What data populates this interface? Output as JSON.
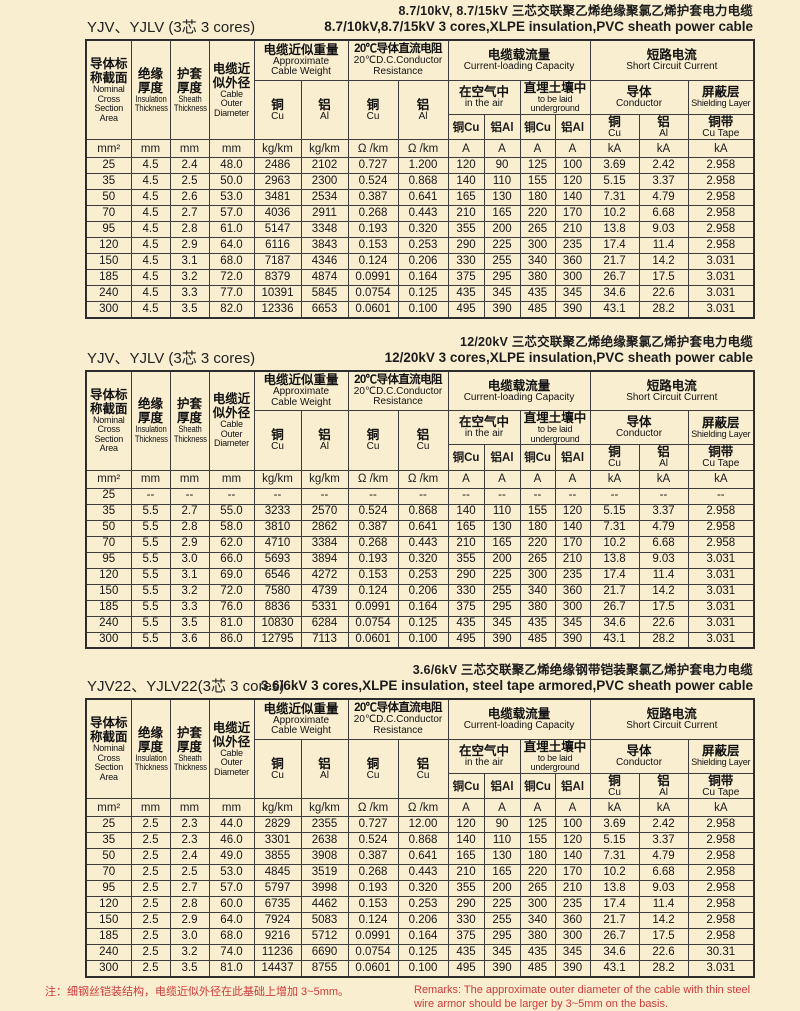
{
  "colors": {
    "background": "#faeed0",
    "grid": "#3c3c3c",
    "text": "#1c1c1c",
    "note_red": "#cc3a3a"
  },
  "columns": {
    "area_zh": "导体标\n称截面",
    "area_en": "Nominal\nCross\nSection\nArea",
    "insulation_zh": "绝缘\n厚度",
    "insulation_en": "Insulation\nThickness",
    "sheath_zh": "护套\n厚度",
    "sheath_en": "Sheath\nThickness",
    "diameter_zh": "电缆近\n似外径",
    "diameter_en": "Cable\nOuter\nDiameter",
    "weight_zh": "电缆近似重量",
    "weight_en": "Approximate\nCable Weight",
    "resistance_zh": "20℃导体直流电阻",
    "resistance_en": "20℃D.C.Conductor\nResistance",
    "capacity_zh": "电缆载流量",
    "capacity_en": "Current-loading Capacity",
    "short_zh": "短路电流",
    "short_en": "Short  Circuit Current",
    "air_zh": "在空气中",
    "air_en": "in the air",
    "underground_zh": "直埋土壤中",
    "underground_en": "to be laid\nunderground",
    "conductor_zh": "导体",
    "conductor_en": "Conductor",
    "shield_zh": "屏蔽层",
    "shield_en": "Shielding Layer",
    "cu_zh": "铜",
    "cu_en": "Cu",
    "al_zh": "铝",
    "al_en": "Al",
    "cu_inline": "铜Cu",
    "al_inline": "铝Al",
    "cutape_zh": "铜带",
    "cutape_en": "Cu Tape",
    "units": [
      "mm²",
      "mm",
      "mm",
      "mm",
      "kg/km",
      "kg/km",
      "Ω /km",
      "Ω /km",
      "A",
      "A",
      "A",
      "A",
      "kA",
      "kA",
      "kA"
    ]
  },
  "tables": [
    {
      "code": "YJV、YJLV (3芯 3 cores)",
      "title_zh": "8.7/10kV, 8.7/15kV 三芯交联聚乙烯绝缘聚氯乙烯护套电力电缆",
      "title_en": "8.7/10kV,8.7/15kV 3 cores,XLPE insulation,PVC sheath power cable",
      "res_al_en": "Al",
      "rows": [
        [
          "25",
          "4.5",
          "2.4",
          "48.0",
          "2486",
          "2102",
          "0.727",
          "1.200",
          "120",
          "90",
          "125",
          "100",
          "3.69",
          "2.42",
          "2.958"
        ],
        [
          "35",
          "4.5",
          "2.5",
          "50.0",
          "2963",
          "2300",
          "0.524",
          "0.868",
          "140",
          "110",
          "155",
          "120",
          "5.15",
          "3.37",
          "2.958"
        ],
        [
          "50",
          "4.5",
          "2.6",
          "53.0",
          "3481",
          "2534",
          "0.387",
          "0.641",
          "165",
          "130",
          "180",
          "140",
          "7.31",
          "4.79",
          "2.958"
        ],
        [
          "70",
          "4.5",
          "2.7",
          "57.0",
          "4036",
          "2911",
          "0.268",
          "0.443",
          "210",
          "165",
          "220",
          "170",
          "10.2",
          "6.68",
          "2.958"
        ],
        [
          "95",
          "4.5",
          "2.8",
          "61.0",
          "5147",
          "3348",
          "0.193",
          "0.320",
          "355",
          "200",
          "265",
          "210",
          "13.8",
          "9.03",
          "2.958"
        ],
        [
          "120",
          "4.5",
          "2.9",
          "64.0",
          "6116",
          "3843",
          "0.153",
          "0.253",
          "290",
          "225",
          "300",
          "235",
          "17.4",
          "11.4",
          "2.958"
        ],
        [
          "150",
          "4.5",
          "3.1",
          "68.0",
          "7187",
          "4346",
          "0.124",
          "0.206",
          "330",
          "255",
          "340",
          "360",
          "21.7",
          "14.2",
          "3.031"
        ],
        [
          "185",
          "4.5",
          "3.2",
          "72.0",
          "8379",
          "4874",
          "0.0991",
          "0.164",
          "375",
          "295",
          "380",
          "300",
          "26.7",
          "17.5",
          "3.031"
        ],
        [
          "240",
          "4.5",
          "3.3",
          "77.0",
          "10391",
          "5845",
          "0.0754",
          "0.125",
          "435",
          "345",
          "435",
          "345",
          "34.6",
          "22.6",
          "3.031"
        ],
        [
          "300",
          "4.5",
          "3.5",
          "82.0",
          "12336",
          "6653",
          "0.0601",
          "0.100",
          "495",
          "390",
          "485",
          "390",
          "43.1",
          "28.2",
          "3.031"
        ]
      ]
    },
    {
      "code": "YJV、YJLV (3芯 3 cores)",
      "title_zh": "12/20kV 三芯交联聚乙烯绝缘聚氯乙烯护套电力电缆",
      "title_en": "12/20kV 3 cores,XLPE insulation,PVC sheath power cable",
      "res_al_en": "Cu",
      "rows": [
        [
          "25",
          "--",
          "--",
          "--",
          "--",
          "--",
          "--",
          "--",
          "--",
          "--",
          "--",
          "--",
          "--",
          "--",
          "--"
        ],
        [
          "35",
          "5.5",
          "2.7",
          "55.0",
          "3233",
          "2570",
          "0.524",
          "0.868",
          "140",
          "110",
          "155",
          "120",
          "5.15",
          "3.37",
          "2.958"
        ],
        [
          "50",
          "5.5",
          "2.8",
          "58.0",
          "3810",
          "2862",
          "0.387",
          "0.641",
          "165",
          "130",
          "180",
          "140",
          "7.31",
          "4.79",
          "2.958"
        ],
        [
          "70",
          "5.5",
          "2.9",
          "62.0",
          "4710",
          "3384",
          "0.268",
          "0.443",
          "210",
          "165",
          "220",
          "170",
          "10.2",
          "6.68",
          "2.958"
        ],
        [
          "95",
          "5.5",
          "3.0",
          "66.0",
          "5693",
          "3894",
          "0.193",
          "0.320",
          "355",
          "200",
          "265",
          "210",
          "13.8",
          "9.03",
          "3.031"
        ],
        [
          "120",
          "5.5",
          "3.1",
          "69.0",
          "6546",
          "4272",
          "0.153",
          "0.253",
          "290",
          "225",
          "300",
          "235",
          "17.4",
          "11.4",
          "3.031"
        ],
        [
          "150",
          "5.5",
          "3.2",
          "72.0",
          "7580",
          "4739",
          "0.124",
          "0.206",
          "330",
          "255",
          "340",
          "360",
          "21.7",
          "14.2",
          "3.031"
        ],
        [
          "185",
          "5.5",
          "3.3",
          "76.0",
          "8836",
          "5331",
          "0.0991",
          "0.164",
          "375",
          "295",
          "380",
          "300",
          "26.7",
          "17.5",
          "3.031"
        ],
        [
          "240",
          "5.5",
          "3.5",
          "81.0",
          "10830",
          "6284",
          "0.0754",
          "0.125",
          "435",
          "345",
          "435",
          "345",
          "34.6",
          "22.6",
          "3.031"
        ],
        [
          "300",
          "5.5",
          "3.6",
          "86.0",
          "12795",
          "7113",
          "0.0601",
          "0.100",
          "495",
          "390",
          "485",
          "390",
          "43.1",
          "28.2",
          "3.031"
        ]
      ]
    },
    {
      "code": "YJV22、YJLV22(3芯 3 cores)",
      "title_zh": "3.6/6kV 三芯交联聚乙烯绝缘钢带铠装聚氯乙烯护套电力电缆",
      "title_en": "3.6/6kV 3 cores,XLPE insulation, steel tape armored,PVC sheath power cable",
      "res_al_en": "Cu",
      "rows": [
        [
          "25",
          "2.5",
          "2.3",
          "44.0",
          "2829",
          "2355",
          "0.727",
          "12.00",
          "120",
          "90",
          "125",
          "100",
          "3.69",
          "2.42",
          "2.958"
        ],
        [
          "35",
          "2.5",
          "2.3",
          "46.0",
          "3301",
          "2638",
          "0.524",
          "0.868",
          "140",
          "110",
          "155",
          "120",
          "5.15",
          "3.37",
          "2.958"
        ],
        [
          "50",
          "2.5",
          "2.4",
          "49.0",
          "3855",
          "3908",
          "0.387",
          "0.641",
          "165",
          "130",
          "180",
          "140",
          "7.31",
          "4.79",
          "2.958"
        ],
        [
          "70",
          "2.5",
          "2.5",
          "53.0",
          "4845",
          "3519",
          "0.268",
          "0.443",
          "210",
          "165",
          "220",
          "170",
          "10.2",
          "6.68",
          "2.958"
        ],
        [
          "95",
          "2.5",
          "2.7",
          "57.0",
          "5797",
          "3998",
          "0.193",
          "0.320",
          "355",
          "200",
          "265",
          "210",
          "13.8",
          "9.03",
          "2.958"
        ],
        [
          "120",
          "2.5",
          "2.8",
          "60.0",
          "6735",
          "4462",
          "0.153",
          "0.253",
          "290",
          "225",
          "300",
          "235",
          "17.4",
          "11.4",
          "2.958"
        ],
        [
          "150",
          "2.5",
          "2.9",
          "64.0",
          "7924",
          "5083",
          "0.124",
          "0.206",
          "330",
          "255",
          "340",
          "360",
          "21.7",
          "14.2",
          "2.958"
        ],
        [
          "185",
          "2.5",
          "3.0",
          "68.0",
          "9216",
          "5712",
          "0.0991",
          "0.164",
          "375",
          "295",
          "380",
          "300",
          "26.7",
          "17.5",
          "2.958"
        ],
        [
          "240",
          "2.5",
          "3.2",
          "74.0",
          "11236",
          "6690",
          "0.0754",
          "0.125",
          "435",
          "345",
          "435",
          "345",
          "34.6",
          "22.6",
          "30.31"
        ],
        [
          "300",
          "2.5",
          "3.5",
          "81.0",
          "14437",
          "8755",
          "0.0601",
          "0.100",
          "495",
          "390",
          "485",
          "390",
          "43.1",
          "28.2",
          "3.031"
        ]
      ]
    }
  ],
  "note": {
    "zh": "注：细钢丝铠装结构，电缆近似外径在此基础上增加 3~5mm。",
    "en": "Remarks:  The approximate  outer diameter of the cable with thin steel wire armor should be larger by 3~5mm on the basis."
  }
}
